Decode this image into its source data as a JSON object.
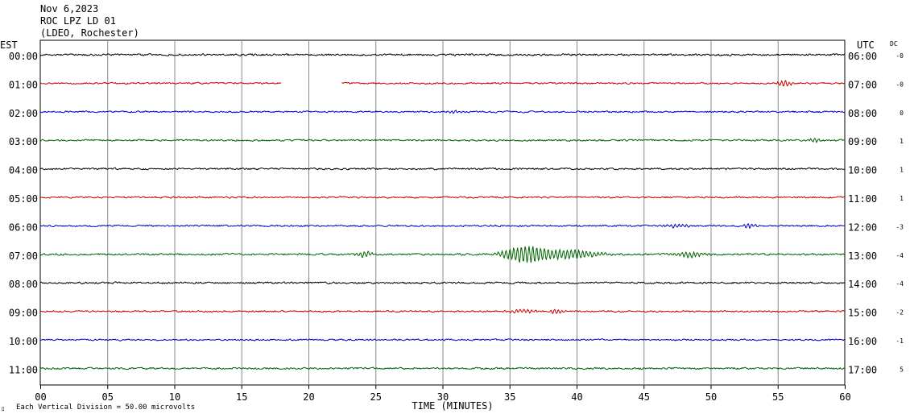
{
  "header": {
    "date": "Nov 6,2023",
    "station": "ROC LPZ LD 01",
    "network": "(LDEO, Rochester)"
  },
  "axes": {
    "left_label": "EST",
    "right_label": "UTC",
    "dc_label": "DC",
    "x_title": "TIME (MINUTES)",
    "footnote_mark": "ﾛ",
    "footnote": "Each Vertical Division =   50.00 microvolts"
  },
  "colors": [
    "#000000",
    "#cc0000",
    "#0000cc",
    "#006400"
  ],
  "chart_data": {
    "type": "line",
    "xlabel": "TIME (MINUTES)",
    "xlim": [
      0,
      60
    ],
    "x_ticks": [
      "00",
      "05",
      "10",
      "15",
      "20",
      "25",
      "30",
      "35",
      "40",
      "45",
      "50",
      "55",
      "60"
    ],
    "grid": true,
    "rows": [
      {
        "est": "00:00",
        "utc": "06:00",
        "dc": "-0",
        "color": "#000000",
        "amplitude": 1.0,
        "events": []
      },
      {
        "est": "01:00",
        "utc": "07:00",
        "dc": "-0",
        "color": "#cc0000",
        "amplitude": 0.9,
        "gap": [
          18,
          22.5
        ],
        "events": [
          {
            "t": 55.5,
            "amp": 3.5,
            "dur": 0.6
          }
        ]
      },
      {
        "est": "02:00",
        "utc": "08:00",
        "dc": "0",
        "color": "#0000cc",
        "amplitude": 0.9,
        "events": [
          {
            "t": 30.8,
            "amp": 2.0,
            "dur": 0.6
          }
        ]
      },
      {
        "est": "03:00",
        "utc": "09:00",
        "dc": "1",
        "color": "#006400",
        "amplitude": 1.0,
        "events": [
          {
            "t": 57.8,
            "amp": 2.5,
            "dur": 0.5
          }
        ]
      },
      {
        "est": "04:00",
        "utc": "10:00",
        "dc": "1",
        "color": "#000000",
        "amplitude": 1.0,
        "events": []
      },
      {
        "est": "05:00",
        "utc": "11:00",
        "dc": "1",
        "color": "#cc0000",
        "amplitude": 0.9,
        "events": []
      },
      {
        "est": "06:00",
        "utc": "12:00",
        "dc": "-3",
        "color": "#0000cc",
        "amplitude": 0.9,
        "events": [
          {
            "t": 47.5,
            "amp": 2.0,
            "dur": 1.0
          },
          {
            "t": 52.8,
            "amp": 3.0,
            "dur": 0.5
          }
        ]
      },
      {
        "est": "07:00",
        "utc": "13:00",
        "dc": "-4",
        "color": "#006400",
        "amplitude": 1.0,
        "events": [
          {
            "t": 24.2,
            "amp": 3.5,
            "dur": 0.7
          },
          {
            "t": 36.2,
            "amp": 9.5,
            "dur": 1.8
          },
          {
            "t": 39.5,
            "amp": 5.0,
            "dur": 2.5
          },
          {
            "t": 48.5,
            "amp": 3.0,
            "dur": 1.2
          }
        ]
      },
      {
        "est": "08:00",
        "utc": "14:00",
        "dc": "-4",
        "color": "#000000",
        "amplitude": 1.0,
        "events": []
      },
      {
        "est": "09:00",
        "utc": "15:00",
        "dc": "-2",
        "color": "#cc0000",
        "amplitude": 0.9,
        "events": [
          {
            "t": 36.0,
            "amp": 2.0,
            "dur": 1.2
          },
          {
            "t": 38.5,
            "amp": 2.5,
            "dur": 0.6
          }
        ]
      },
      {
        "est": "10:00",
        "utc": "16:00",
        "dc": "-1",
        "color": "#0000cc",
        "amplitude": 0.9,
        "events": []
      },
      {
        "est": "11:00",
        "utc": "17:00",
        "dc": "5",
        "color": "#006400",
        "amplitude": 1.0,
        "events": []
      }
    ]
  }
}
